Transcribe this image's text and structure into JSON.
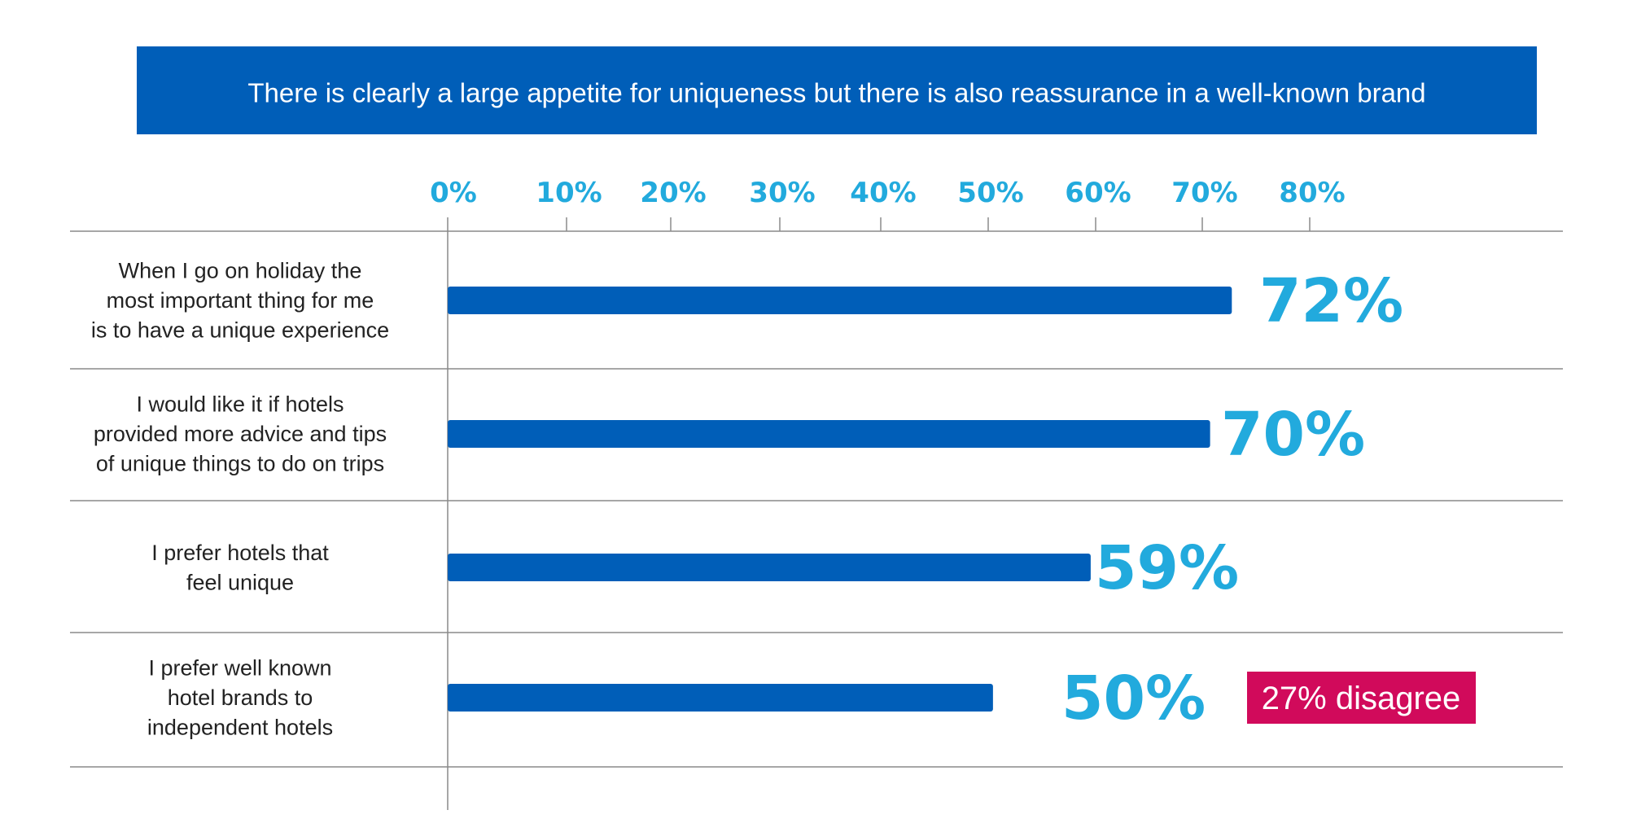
{
  "colors": {
    "banner": "#005eb8",
    "bar": "#005eb8",
    "label_accent": "#22aadd",
    "badge": "#d10a5b",
    "rule": "#8a8a8a"
  },
  "chart_data": {
    "type": "bar",
    "orientation": "horizontal",
    "title": "There is clearly a large appetite for uniqueness but there is also reassurance in a well-known brand",
    "x_ticks": [
      "0%",
      "10%",
      "20%",
      "30%",
      "40%",
      "50%",
      "60%",
      "70%",
      "80%"
    ],
    "xlim": [
      0,
      80
    ],
    "categories": [
      [
        "When I go on holiday the",
        "most important thing for me",
        "is to have a unique experience"
      ],
      [
        "I would like it if hotels",
        "provided more advice and tips",
        "of unique things to do on trips"
      ],
      [
        "I prefer hotels that",
        "feel unique"
      ],
      [
        "I prefer well known",
        "hotel brands to",
        "independent hotels"
      ]
    ],
    "values": [
      72,
      70,
      59,
      50
    ],
    "value_labels": [
      "72%",
      "70%",
      "59%",
      "50%"
    ],
    "annotation": {
      "text": "27% disagree",
      "row": 3
    },
    "grid": false
  }
}
